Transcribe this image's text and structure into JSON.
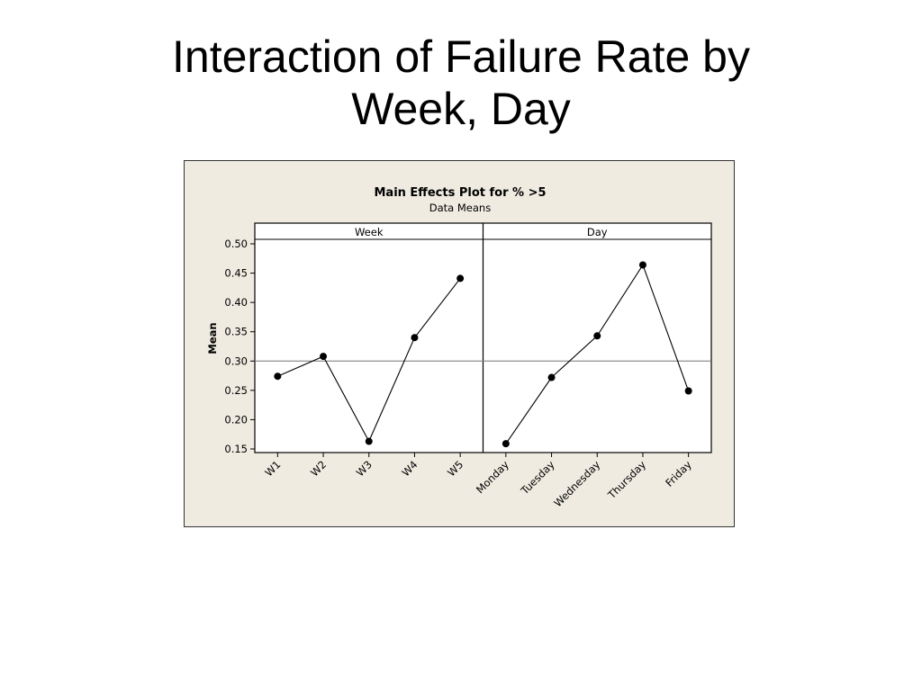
{
  "slide": {
    "title_line1": "Interaction of Failure Rate by",
    "title_line2": "Week, Day"
  },
  "chart_data": {
    "type": "line",
    "title": "Main Effects Plot for %  >5",
    "subtitle": "Data Means",
    "ylabel": "Mean",
    "ylim": [
      0.15,
      0.5
    ],
    "yticks": [
      "0.15",
      "0.20",
      "0.25",
      "0.30",
      "0.35",
      "0.40",
      "0.45",
      "0.50"
    ],
    "reference_line": 0.3,
    "panels": [
      {
        "name": "Week",
        "categories": [
          "W1",
          "W2",
          "W3",
          "W4",
          "W5"
        ],
        "values": [
          0.274,
          0.308,
          0.163,
          0.34,
          0.441
        ]
      },
      {
        "name": "Day",
        "categories": [
          "Monday",
          "Tuesday",
          "Wednesday",
          "Thursday",
          "Friday"
        ],
        "values": [
          0.159,
          0.272,
          0.343,
          0.464,
          0.249
        ]
      }
    ],
    "grid": false,
    "legend": "none"
  }
}
